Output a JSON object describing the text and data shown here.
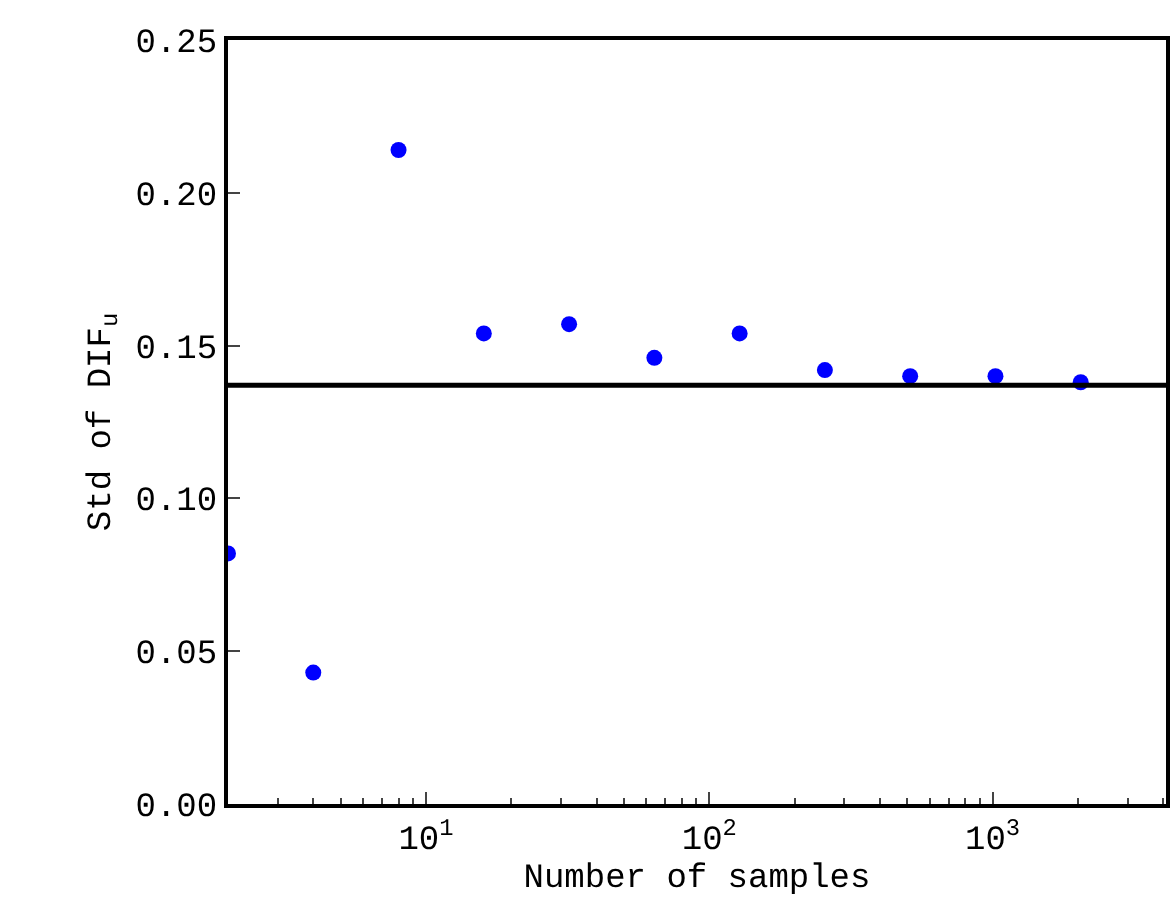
{
  "chart_data": {
    "type": "scatter",
    "xlabel": "Number of samples",
    "ylabel": "Std of DIF$_{u}$",
    "x": [
      2,
      4,
      8,
      16,
      32,
      64,
      128,
      256,
      512,
      1024,
      2048
    ],
    "series": [
      {
        "color": "#0000ff",
        "values": [
          0.082,
          0.043,
          0.214,
          0.154,
          0.157,
          0.146,
          0.154,
          0.142,
          0.14,
          0.14,
          0.138
        ]
      }
    ],
    "ref_lines": [
      {
        "axis": "y",
        "value": 0.137,
        "color": "#000000"
      }
    ],
    "log": "x",
    "xlim": [
      2,
      4096
    ],
    "xticks": [
      {
        "value": 10,
        "label": "10$^{1}$"
      },
      {
        "value": 100,
        "label": "10$^{2}$"
      },
      {
        "value": 1000,
        "label": "10$^{3}$"
      }
    ],
    "ylim": [
      0,
      0.25
    ],
    "yticks": [
      {
        "value": 0,
        "label": "0.00"
      },
      {
        "value": 0.05,
        "label": "0.05"
      },
      {
        "value": 0.1,
        "label": "0.10"
      },
      {
        "value": 0.15,
        "label": "0.15"
      },
      {
        "value": 0.2,
        "label": "0.20"
      },
      {
        "value": 0.25,
        "label": "0.25"
      }
    ],
    "marker": "circle"
  }
}
